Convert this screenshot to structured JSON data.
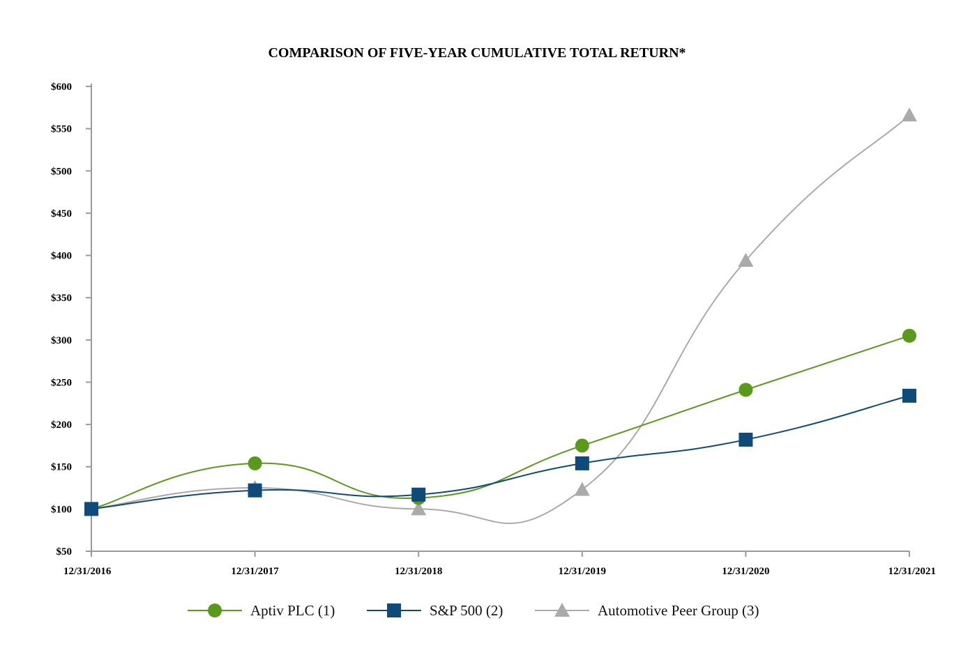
{
  "chart_data": {
    "type": "line",
    "title": "COMPARISON OF FIVE-YEAR CUMULATIVE TOTAL RETURN*",
    "xlabel": "",
    "ylabel": "",
    "categories": [
      "12/31/2016",
      "12/31/2017",
      "12/31/2018",
      "12/31/2019",
      "12/31/2020",
      "12/31/2021"
    ],
    "ylim": [
      50,
      600
    ],
    "y_ticks": [
      50,
      100,
      150,
      200,
      250,
      300,
      350,
      400,
      450,
      500,
      550,
      600
    ],
    "y_tick_labels": [
      "$50",
      "$100",
      "$150",
      "$200",
      "$250",
      "$300",
      "$350",
      "$400",
      "$450",
      "$500",
      "$550",
      "$600"
    ],
    "grid": false,
    "legend_position": "bottom",
    "series": [
      {
        "name": "Aptiv PLC (1)",
        "marker": "circle",
        "color": "#5a9a1a",
        "values": [
          100,
          154,
          113,
          175,
          241,
          305
        ]
      },
      {
        "name": "S&P 500 (2)",
        "marker": "square",
        "color": "#0e4a7a",
        "values": [
          100,
          122,
          117,
          154,
          182,
          234
        ]
      },
      {
        "name": "Automotive Peer Group (3)",
        "marker": "triangle",
        "color": "#aaaaaa",
        "values": [
          100,
          125,
          100,
          123,
          394,
          566
        ]
      }
    ]
  }
}
